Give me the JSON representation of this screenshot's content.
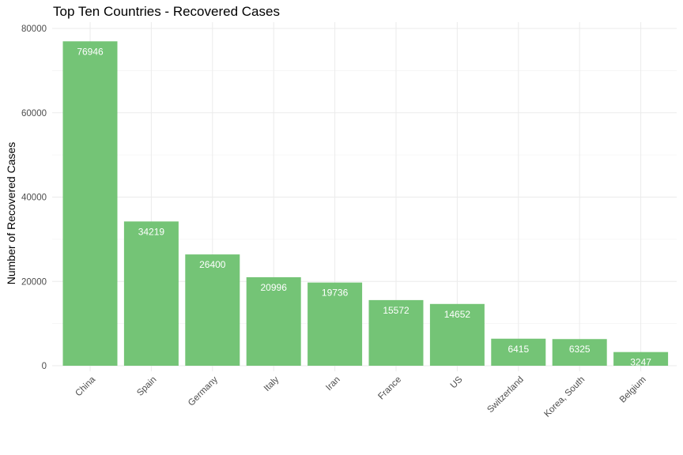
{
  "chart_data": {
    "type": "bar",
    "title": "Top Ten Countries - Recovered Cases",
    "xlabel": "",
    "ylabel": "Number of Recovered Cases",
    "categories": [
      "China",
      "Spain",
      "Germany",
      "Italy",
      "Iran",
      "France",
      "US",
      "Switzerland",
      "Korea, South",
      "Belgium"
    ],
    "values": [
      76946,
      34219,
      26400,
      20996,
      19736,
      15572,
      14652,
      6415,
      6325,
      3247
    ],
    "data_labels": [
      "76946",
      "34219",
      "26400",
      "20996",
      "19736",
      "15572",
      "14652",
      "6415",
      "6325",
      "3247"
    ],
    "ylim": [
      0,
      80000
    ],
    "y_ticks": [
      0,
      20000,
      40000,
      60000,
      80000
    ],
    "y_tick_labels": [
      "0",
      "20000",
      "40000",
      "60000",
      "80000"
    ],
    "bar_color": "#74c476",
    "grid": true,
    "legend": "none"
  }
}
